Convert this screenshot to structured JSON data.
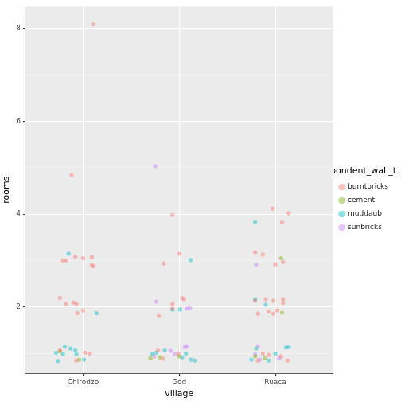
{
  "chart_data": {
    "type": "scatter",
    "x_label": "village",
    "y_label": "rooms",
    "legend_title": "respondent_wall_type",
    "legend": "right",
    "grid": true,
    "xlim": [
      0.4,
      3.6
    ],
    "xticks": [
      {
        "value": 1,
        "label": "Chirodzo"
      },
      {
        "value": 2,
        "label": "God"
      },
      {
        "value": 3,
        "label": "Ruaca"
      }
    ],
    "ylim": [
      0.58,
      8.46
    ],
    "yticks": [
      2,
      4,
      6,
      8
    ],
    "series": [
      {
        "name": "burntbricks",
        "color": "#F8766D",
        "x": [
          1.11,
          0.88,
          0.79,
          0.82,
          0.92,
          1.0,
          1.09,
          1.09,
          1.11,
          0.76,
          0.82,
          0.9,
          0.93,
          0.94,
          1.0,
          1.02,
          1.07,
          0.93,
          0.76,
          1.93,
          1.84,
          2.0,
          2.03,
          2.05,
          1.93,
          1.79,
          1.93,
          1.99,
          1.83,
          1.78,
          2.97,
          3.14,
          3.07,
          2.79,
          2.87,
          3.0,
          3.08,
          2.79,
          2.9,
          2.98,
          3.08,
          3.08,
          2.82,
          2.93,
          3.02,
          2.98,
          2.87,
          2.93,
          3.06,
          2.82,
          3.13
        ],
        "values": [
          8.08,
          4.84,
          3.0,
          3.0,
          3.08,
          3.05,
          3.07,
          2.9,
          2.88,
          2.2,
          2.07,
          2.1,
          2.07,
          1.87,
          1.93,
          1.02,
          1.0,
          0.85,
          1.07,
          3.98,
          2.94,
          3.15,
          2.2,
          2.17,
          1.97,
          1.81,
          2.07,
          1.0,
          0.89,
          1.07,
          4.12,
          4.02,
          3.82,
          3.18,
          3.13,
          2.92,
          2.97,
          2.14,
          2.17,
          2.14,
          2.09,
          2.17,
          1.86,
          1.9,
          1.93,
          1.86,
          1.0,
          0.97,
          0.94,
          0.85,
          0.85
        ]
      },
      {
        "name": "cement",
        "color": "#7CAE00",
        "x": [
          0.76,
          0.96,
          1.7,
          1.8,
          2.0,
          3.06,
          3.07,
          2.79,
          2.89
        ],
        "values": [
          1.05,
          0.87,
          0.9,
          0.92,
          0.94,
          3.05,
          1.88,
          0.94,
          0.9
        ]
      },
      {
        "name": "muddaub",
        "color": "#00BFC4",
        "x": [
          0.85,
          1.14,
          0.81,
          0.87,
          0.92,
          0.72,
          0.74,
          0.93,
          0.79,
          1.01,
          2.12,
          2.01,
          1.93,
          1.76,
          1.85,
          2.07,
          2.12,
          2.03,
          2.16,
          1.72,
          2.79,
          2.79,
          2.9,
          2.8,
          3.0,
          3.11,
          3.14,
          2.93,
          2.75
        ],
        "values": [
          3.15,
          1.87,
          1.15,
          1.11,
          1.07,
          1.02,
          0.84,
          0.99,
          0.99,
          0.87,
          3.01,
          1.95,
          1.95,
          1.02,
          1.07,
          1.0,
          0.87,
          0.92,
          0.85,
          0.99,
          3.83,
          2.17,
          2.05,
          1.11,
          1.0,
          1.13,
          1.14,
          0.85,
          0.87
        ]
      },
      {
        "name": "sunbricks",
        "color": "#C77CFF",
        "x": [
          1.75,
          1.76,
          2.08,
          2.11,
          1.91,
          2.06,
          2.08,
          1.95,
          1.74,
          2.8,
          2.82,
          2.79,
          2.84,
          3.04
        ],
        "values": [
          5.03,
          2.12,
          1.97,
          1.98,
          1.06,
          1.14,
          1.16,
          0.99,
          0.94,
          2.91,
          1.16,
          0.99,
          0.87,
          0.9
        ]
      }
    ]
  }
}
